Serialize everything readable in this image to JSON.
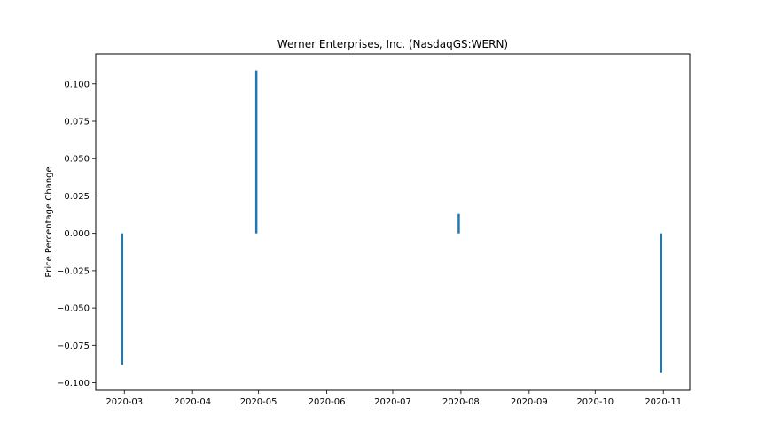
{
  "chart_data": {
    "type": "bar",
    "title": "Werner Enterprises, Inc. (NasdaqGS:WERN)",
    "xlabel": "",
    "ylabel": "Price Percentage Change",
    "x_axis": {
      "type": "date",
      "range": [
        "2020-02-17",
        "2020-11-13"
      ],
      "ticks": [
        "2020-03-01",
        "2020-04-01",
        "2020-05-01",
        "2020-06-01",
        "2020-07-01",
        "2020-08-01",
        "2020-09-01",
        "2020-10-01",
        "2020-11-01"
      ],
      "tick_labels": [
        "2020-03",
        "2020-04",
        "2020-05",
        "2020-06",
        "2020-07",
        "2020-08",
        "2020-09",
        "2020-10",
        "2020-11"
      ]
    },
    "y_axis": {
      "range": [
        -0.105,
        0.12
      ],
      "ticks": [
        0.1,
        0.075,
        0.05,
        0.025,
        0.0,
        -0.025,
        -0.05,
        -0.075,
        -0.1
      ],
      "tick_labels": [
        "0.100",
        "0.075",
        "0.050",
        "0.025",
        "0.000",
        "−0.025",
        "−0.050",
        "−0.075",
        "−0.100"
      ]
    },
    "grid": false,
    "series": [
      {
        "color": "#1f77b4",
        "points": [
          {
            "x": "2020-02-29",
            "y": -0.088
          },
          {
            "x": "2020-04-30",
            "y": 0.109
          },
          {
            "x": "2020-07-31",
            "y": 0.013
          },
          {
            "x": "2020-10-31",
            "y": -0.093
          }
        ]
      }
    ]
  }
}
